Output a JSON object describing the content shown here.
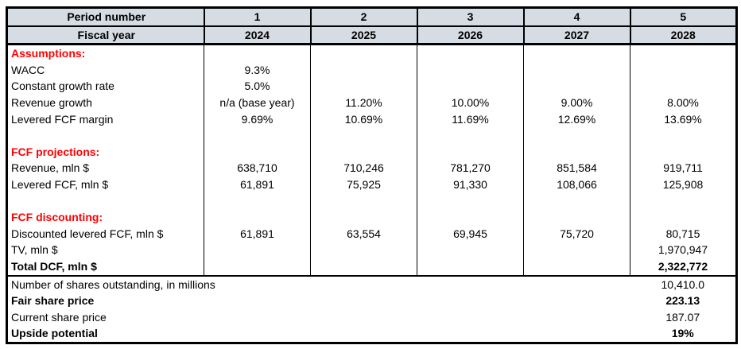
{
  "colors": {
    "header_bg": "#D6DCE4",
    "section_text": "#FF0000",
    "grid_border": "#000000"
  },
  "header": {
    "period_row_label": "Period number",
    "fiscal_row_label": "Fiscal year",
    "periods": [
      "1",
      "2",
      "3",
      "4",
      "5"
    ],
    "years": [
      "2024",
      "2025",
      "2026",
      "2027",
      "2028"
    ]
  },
  "body_rows": [
    {
      "label": "Assumptions:",
      "cells": [
        "",
        "",
        "",
        "",
        ""
      ]
    },
    {
      "label": "WACC",
      "cells": [
        "9.3%",
        "",
        "",
        "",
        ""
      ]
    },
    {
      "label": "Constant growth rate",
      "cells": [
        "5.0%",
        "",
        "",
        "",
        ""
      ]
    },
    {
      "label": "Revenue growth",
      "cells": [
        "n/a (base year)",
        "11.20%",
        "10.00%",
        "9.00%",
        "8.00%"
      ]
    },
    {
      "label": "Levered FCF margin",
      "cells": [
        "9.69%",
        "10.69%",
        "11.69%",
        "12.69%",
        "13.69%"
      ]
    },
    {
      "label": "",
      "cells": [
        "",
        "",
        "",
        "",
        ""
      ]
    },
    {
      "label": "FCF projections:",
      "cells": [
        "",
        "",
        "",
        "",
        ""
      ]
    },
    {
      "label": "Revenue, mln $",
      "cells": [
        "638,710",
        "710,246",
        "781,270",
        "851,584",
        "919,711"
      ]
    },
    {
      "label": "Levered FCF, mln $",
      "cells": [
        "61,891",
        "75,925",
        "91,330",
        "108,066",
        "125,908"
      ]
    },
    {
      "label": "",
      "cells": [
        "",
        "",
        "",
        "",
        ""
      ]
    },
    {
      "label": "FCF discounting:",
      "cells": [
        "",
        "",
        "",
        "",
        ""
      ]
    },
    {
      "label": "Discounted levered FCF, mln $",
      "cells": [
        "61,891",
        "63,554",
        "69,945",
        "75,720",
        "80,715"
      ]
    },
    {
      "label": "TV, mln $",
      "cells": [
        "",
        "",
        "",
        "",
        "1,970,947"
      ]
    },
    {
      "label": "Total DCF, mln $",
      "cells": [
        "",
        "",
        "",
        "",
        "2,322,772"
      ]
    }
  ],
  "summary_rows": [
    {
      "label": "Number of shares outstanding, in millions",
      "value": "10,410.0"
    },
    {
      "label": "Fair share price",
      "value": "223.13"
    },
    {
      "label": "Current share price",
      "value": "187.07"
    },
    {
      "label": "Upside potential",
      "value": "19%"
    }
  ]
}
